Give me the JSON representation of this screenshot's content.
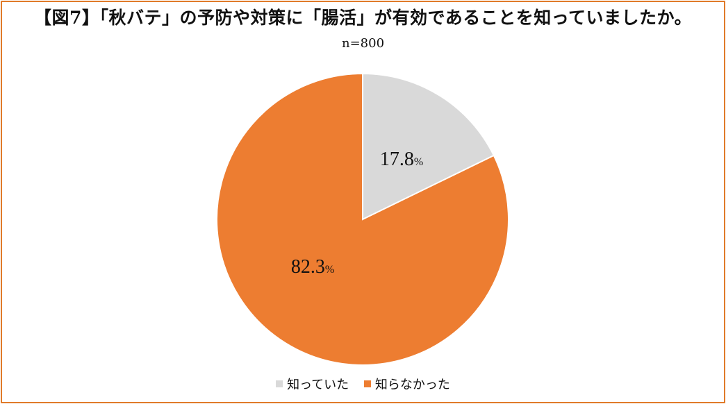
{
  "chart_data": {
    "type": "pie",
    "title": "【図7】「秋バテ」の予防や対策に「腸活」が有効であることを知っていましたか。",
    "subtitle": "n=800",
    "categories": [
      "知っていた",
      "知らなかった"
    ],
    "values": [
      17.8,
      82.3
    ],
    "value_labels": [
      "17.8",
      "82.3"
    ],
    "unit": "%",
    "colors": [
      "#d9d9d9",
      "#ed7d31"
    ],
    "legend_position": "bottom"
  },
  "frame": {
    "border_color": "#e07b2a"
  }
}
